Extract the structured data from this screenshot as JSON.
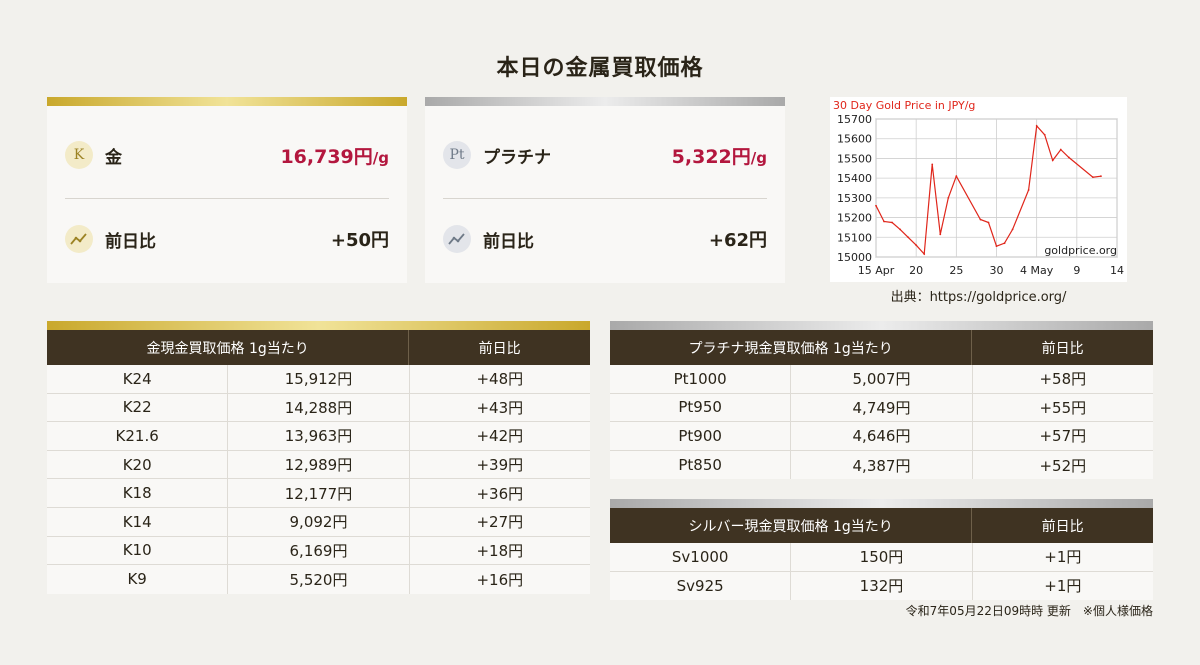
{
  "title": "本日の金属買取価格",
  "gold_card": {
    "badge": "K",
    "label": "金",
    "price": "16,739円",
    "unit": "/g",
    "diff_label": "前日比",
    "diff": "+50円"
  },
  "platinum_card": {
    "badge": "Pt",
    "label": "プラチナ",
    "price": "5,322円",
    "unit": "/g",
    "diff_label": "前日比",
    "diff": "+62円"
  },
  "chart_caption": "出典：https://goldprice.org/",
  "chart_data": {
    "type": "line",
    "title": "30 Day Gold Price in JPY/g",
    "watermark": "goldprice.org",
    "x_tick_labels": [
      "15 Apr",
      "20",
      "25",
      "30",
      "4 May",
      "9",
      "14"
    ],
    "x": [
      15,
      16,
      17,
      18,
      19,
      20,
      21,
      22,
      23,
      24,
      25,
      28,
      29,
      30,
      31,
      32,
      34,
      35,
      36,
      37,
      38,
      39,
      42,
      43
    ],
    "xlim": [
      15,
      45
    ],
    "y": [
      15260,
      15180,
      15175,
      15140,
      15100,
      15060,
      15015,
      15470,
      15115,
      15300,
      15410,
      15190,
      15175,
      15055,
      15070,
      15140,
      15340,
      15665,
      15620,
      15490,
      15545,
      15505,
      15405,
      15410
    ],
    "ylim": [
      15000,
      15700
    ],
    "y_ticks": [
      15000,
      15100,
      15200,
      15300,
      15400,
      15500,
      15600,
      15700
    ],
    "line_color": "#e0261b",
    "grid": true
  },
  "gold_table": {
    "header": [
      "金現金買取価格 1g当たり",
      "前日比"
    ],
    "rows": [
      {
        "name": "K24",
        "price": "15,912円",
        "diff": "+48円"
      },
      {
        "name": "K22",
        "price": "14,288円",
        "diff": "+43円"
      },
      {
        "name": "K21.6",
        "price": "13,963円",
        "diff": "+42円"
      },
      {
        "name": "K20",
        "price": "12,989円",
        "diff": "+39円"
      },
      {
        "name": "K18",
        "price": "12,177円",
        "diff": "+36円"
      },
      {
        "name": "K14",
        "price": "9,092円",
        "diff": "+27円"
      },
      {
        "name": "K10",
        "price": "6,169円",
        "diff": "+18円"
      },
      {
        "name": "K9",
        "price": "5,520円",
        "diff": "+16円"
      }
    ]
  },
  "platinum_table": {
    "header": [
      "プラチナ現金買取価格 1g当たり",
      "前日比"
    ],
    "rows": [
      {
        "name": "Pt1000",
        "price": "5,007円",
        "diff": "+58円"
      },
      {
        "name": "Pt950",
        "price": "4,749円",
        "diff": "+55円"
      },
      {
        "name": "Pt900",
        "price": "4,646円",
        "diff": "+57円"
      },
      {
        "name": "Pt850",
        "price": "4,387円",
        "diff": "+52円"
      }
    ]
  },
  "silver_table": {
    "header": [
      "シルバー現金買取価格 1g当たり",
      "前日比"
    ],
    "rows": [
      {
        "name": "Sv1000",
        "price": "150円",
        "diff": "+1円"
      },
      {
        "name": "Sv925",
        "price": "132円",
        "diff": "+1円"
      }
    ]
  },
  "footnote": "令和7年05月22日09時時 更新　※個人様価格",
  "colors": {
    "accent_red": "#b3173e",
    "header_brown": "#3f3322",
    "gold": "#c9a82c",
    "silver": "#a9a9a9"
  }
}
